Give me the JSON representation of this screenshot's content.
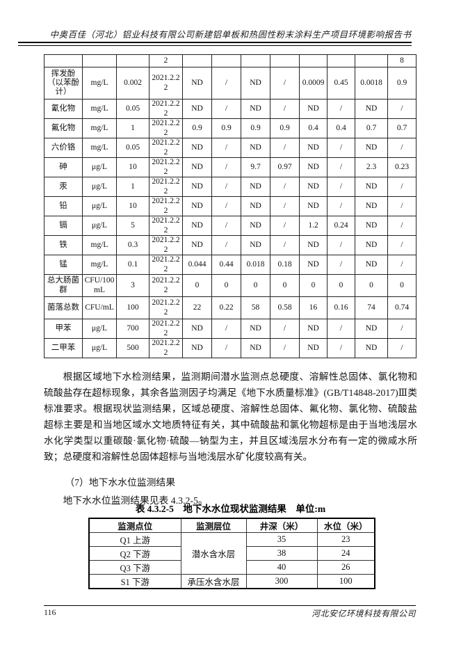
{
  "header": {
    "title": "中奥百佳（河北）铝业科技有限公司新建铝单板和热固性粉末涂料生产项目环境影响报告书"
  },
  "monitoring_table": {
    "continuation_row": [
      "",
      "",
      "",
      "2",
      "",
      "",
      "",
      "",
      "",
      "",
      "",
      "8"
    ],
    "rows": [
      {
        "param": "挥发酚（以苯酚计）",
        "unit": "mg/L",
        "standard": "0.002",
        "date": "2021.2.22",
        "values": [
          "ND",
          "/",
          "ND",
          "/",
          "0.0009",
          "0.45",
          "0.0018",
          "0.9"
        ]
      },
      {
        "param": "氰化物",
        "unit": "mg/L",
        "standard": "0.05",
        "date": "2021.2.22",
        "values": [
          "ND",
          "/",
          "ND",
          "/",
          "ND",
          "/",
          "ND",
          "/"
        ]
      },
      {
        "param": "氟化物",
        "unit": "mg/L",
        "standard": "1",
        "date": "2021.2.22",
        "values": [
          "0.9",
          "0.9",
          "0.9",
          "0.9",
          "0.4",
          "0.4",
          "0.7",
          "0.7"
        ]
      },
      {
        "param": "六价铬",
        "unit": "mg/L",
        "standard": "0.05",
        "date": "2021.2.22",
        "values": [
          "ND",
          "/",
          "ND",
          "/",
          "ND",
          "/",
          "ND",
          "/"
        ]
      },
      {
        "param": "砷",
        "unit": "μg/L",
        "standard": "10",
        "date": "2021.2.22",
        "values": [
          "ND",
          "/",
          "9.7",
          "0.97",
          "ND",
          "/",
          "2.3",
          "0.23"
        ]
      },
      {
        "param": "汞",
        "unit": "μg/L",
        "standard": "1",
        "date": "2021.2.22",
        "values": [
          "ND",
          "/",
          "ND",
          "/",
          "ND",
          "/",
          "ND",
          "/"
        ]
      },
      {
        "param": "铅",
        "unit": "μg/L",
        "standard": "10",
        "date": "2021.2.22",
        "values": [
          "ND",
          "/",
          "ND",
          "/",
          "ND",
          "/",
          "ND",
          "/"
        ]
      },
      {
        "param": "镉",
        "unit": "μg/L",
        "standard": "5",
        "date": "2021.2.22",
        "values": [
          "ND",
          "/",
          "ND",
          "/",
          "1.2",
          "0.24",
          "ND",
          "/"
        ]
      },
      {
        "param": "铁",
        "unit": "mg/L",
        "standard": "0.3",
        "date": "2021.2.22",
        "values": [
          "ND",
          "/",
          "ND",
          "/",
          "ND",
          "/",
          "ND",
          "/"
        ]
      },
      {
        "param": "锰",
        "unit": "mg/L",
        "standard": "0.1",
        "date": "2021.2.22",
        "values": [
          "0.044",
          "0.44",
          "0.018",
          "0.18",
          "ND",
          "/",
          "ND",
          "/"
        ]
      },
      {
        "param": "总大肠菌群",
        "unit": "CFU/100mL",
        "standard": "3",
        "date": "2021.2.22",
        "values": [
          "0",
          "0",
          "0",
          "0",
          "0",
          "0",
          "0",
          "0"
        ]
      },
      {
        "param": "菌落总数",
        "unit": "CFU/mL",
        "standard": "100",
        "date": "2021.2.22",
        "values": [
          "22",
          "0.22",
          "58",
          "0.58",
          "16",
          "0.16",
          "74",
          "0.74"
        ]
      },
      {
        "param": "甲苯",
        "unit": "μg/L",
        "standard": "700",
        "date": "2021.2.22",
        "values": [
          "ND",
          "/",
          "ND",
          "/",
          "ND",
          "/",
          "ND",
          "/"
        ]
      },
      {
        "param": "二甲苯",
        "unit": "μg/L",
        "standard": "500",
        "date": "2021.2.22",
        "values": [
          "ND",
          "/",
          "ND",
          "/",
          "ND",
          "/",
          "ND",
          "/"
        ]
      }
    ]
  },
  "body": {
    "paragraph1": "根据区域地下水检测结果，监测期间潜水监测点总硬度、溶解性总固体、氯化物和硫酸盐存在超标现象，其余各监测因子均满足《地下水质量标准》(GB/T14848-2017)Ⅲ类标准要求。根据现状监测结果，区域总硬度、溶解性总固体、氟化物、氯化物、硫酸盐超标主要是和当地区域水文地质特征有关，其中硫酸盐和氯化物超标是由于当地浅层水水化学类型以重碳酸·氯化物·硫酸—钠型为主，并且区域浅层水分布有一定的微咸水所致；总硬度和溶解性总固体超标与当地浅层水矿化度较高有关。",
    "heading7": "（7）地下水水位监测结果",
    "lead_in": "地下水水位监测结果见表 4.3.2-5。"
  },
  "water_level_table": {
    "caption": "表 4.3.2-5　地下水水位现状监测结果　单位:m",
    "headers": [
      "监测点位",
      "监测层位",
      "井深（米）",
      "水位（米）"
    ],
    "rows": [
      {
        "point": "Q1 上游",
        "layer": "潜水含水层",
        "layer_rowspan": 3,
        "depth": "35",
        "level": "23"
      },
      {
        "point": "Q2 下游",
        "depth": "38",
        "level": "24"
      },
      {
        "point": "Q3 下游",
        "depth": "40",
        "level": "26"
      },
      {
        "point": "S1 下游",
        "layer": "承压水含水层",
        "layer_rowspan": 1,
        "depth": "300",
        "level": "100"
      }
    ]
  },
  "footer": {
    "page_number": "116",
    "company": "河北安亿环境科技有限公司"
  }
}
